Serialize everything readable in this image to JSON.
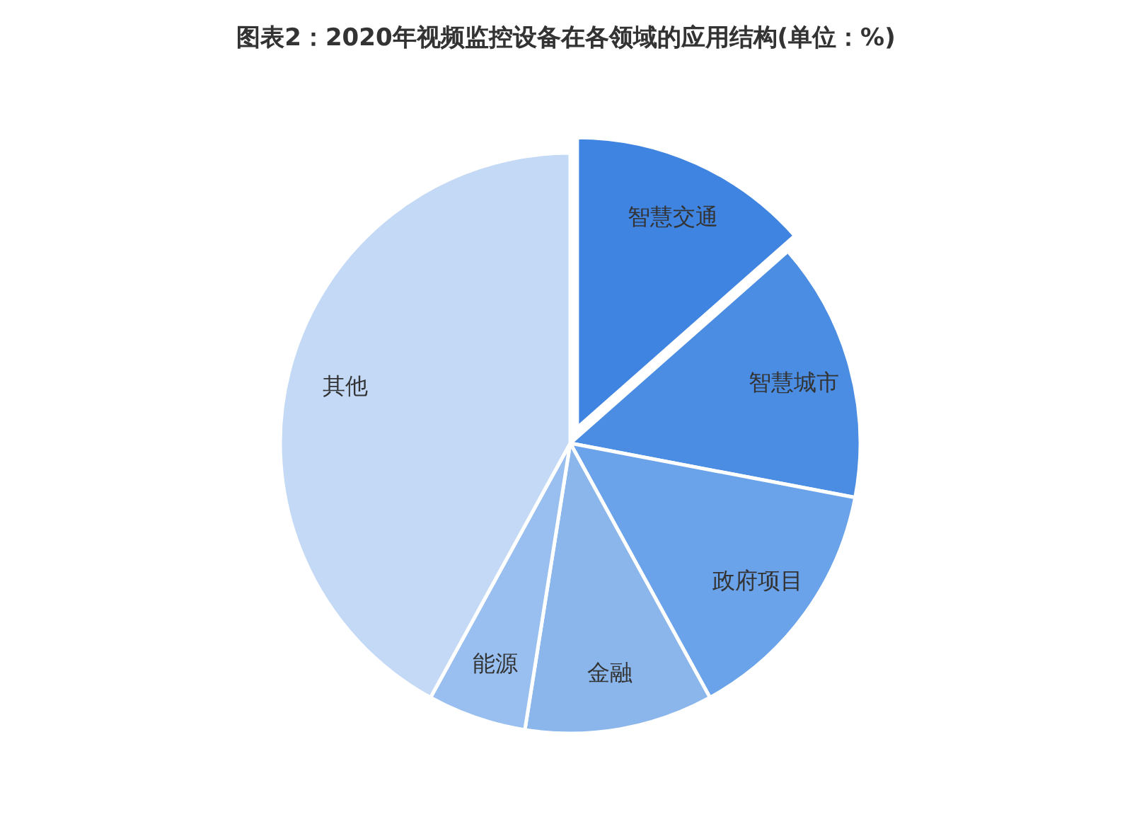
{
  "chart_data": {
    "type": "pie",
    "title": "图表2：2020年视频监控设备在各领域的应用结构(单位：%)",
    "categories": [
      "智慧交通",
      "智慧城市",
      "政府项目",
      "金融",
      "能源",
      "其他"
    ],
    "values": [
      13.5,
      14.5,
      14,
      10.5,
      5.5,
      42
    ],
    "colors": [
      "#3f84e0",
      "#4a8de3",
      "#6aa3ea",
      "#8ab6ec",
      "#98bff0",
      "#c3d9f5"
    ]
  }
}
